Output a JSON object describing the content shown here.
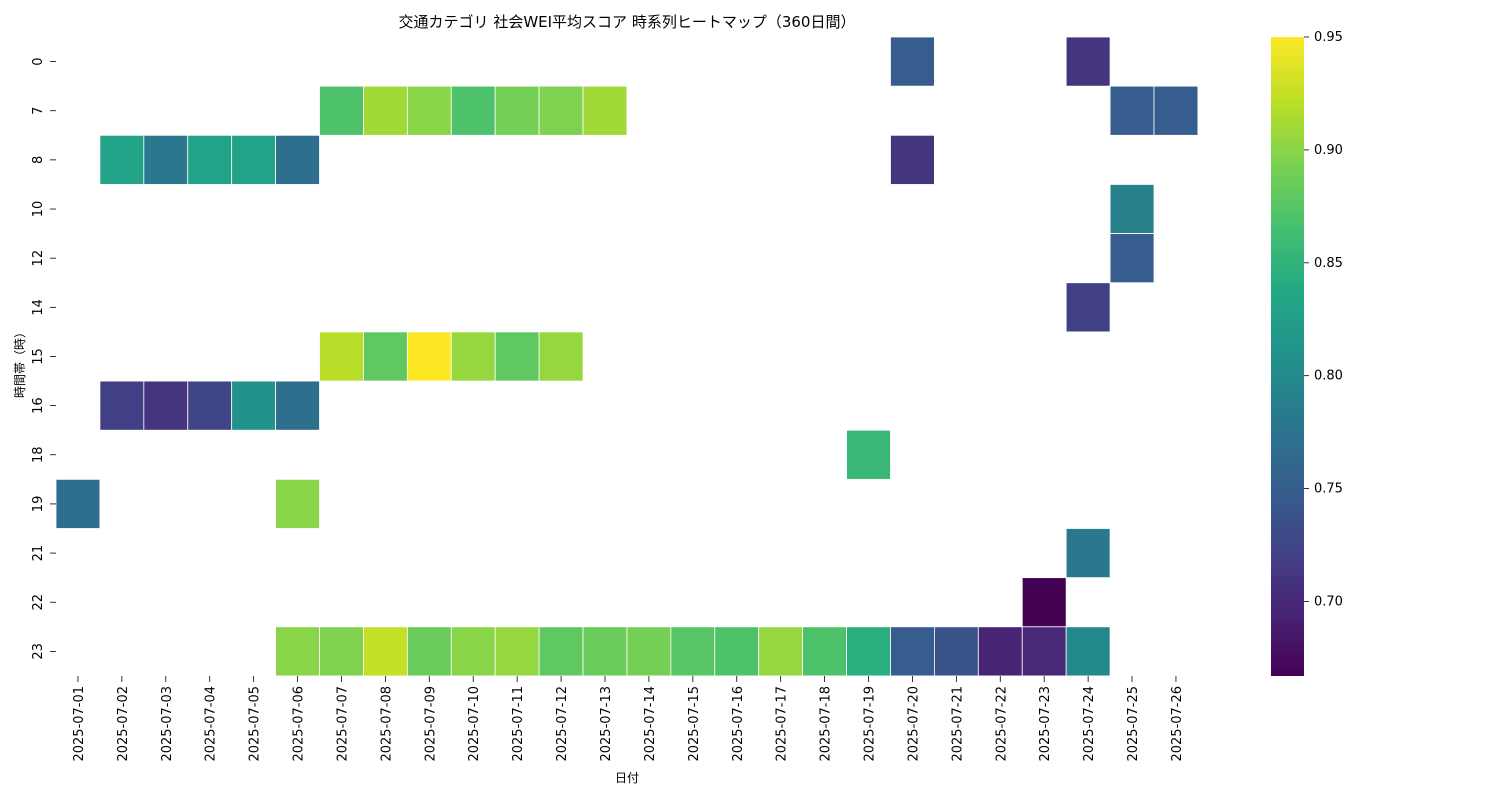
{
  "chart_data": {
    "type": "heatmap",
    "title": "交通カテゴリ 社会WEI平均スコア 時系列ヒートマップ（360日間）",
    "xlabel": "日付",
    "ylabel": "時間帯（時）",
    "x": [
      "2025-07-01",
      "2025-07-02",
      "2025-07-03",
      "2025-07-04",
      "2025-07-05",
      "2025-07-06",
      "2025-07-07",
      "2025-07-08",
      "2025-07-09",
      "2025-07-10",
      "2025-07-11",
      "2025-07-12",
      "2025-07-13",
      "2025-07-14",
      "2025-07-15",
      "2025-07-16",
      "2025-07-17",
      "2025-07-18",
      "2025-07-19",
      "2025-07-20",
      "2025-07-21",
      "2025-07-22",
      "2025-07-23",
      "2025-07-24",
      "2025-07-25",
      "2025-07-26"
    ],
    "y": [
      "0",
      "7",
      "8",
      "10",
      "12",
      "14",
      "15",
      "16",
      "18",
      "19",
      "21",
      "22",
      "23"
    ],
    "cells": [
      {
        "x": "2025-07-20",
        "y": "0",
        "value": 0.75
      },
      {
        "x": "2025-07-24",
        "y": "0",
        "value": 0.71
      },
      {
        "x": "2025-07-07",
        "y": "7",
        "value": 0.87
      },
      {
        "x": "2025-07-08",
        "y": "7",
        "value": 0.91
      },
      {
        "x": "2025-07-09",
        "y": "7",
        "value": 0.9
      },
      {
        "x": "2025-07-10",
        "y": "7",
        "value": 0.87
      },
      {
        "x": "2025-07-11",
        "y": "7",
        "value": 0.89
      },
      {
        "x": "2025-07-12",
        "y": "7",
        "value": 0.895
      },
      {
        "x": "2025-07-13",
        "y": "7",
        "value": 0.91
      },
      {
        "x": "2025-07-25",
        "y": "7",
        "value": 0.75
      },
      {
        "x": "2025-07-26",
        "y": "7",
        "value": 0.75
      },
      {
        "x": "2025-07-02",
        "y": "8",
        "value": 0.83
      },
      {
        "x": "2025-07-03",
        "y": "8",
        "value": 0.78
      },
      {
        "x": "2025-07-04",
        "y": "8",
        "value": 0.83
      },
      {
        "x": "2025-07-05",
        "y": "8",
        "value": 0.83
      },
      {
        "x": "2025-07-06",
        "y": "8",
        "value": 0.77
      },
      {
        "x": "2025-07-20",
        "y": "8",
        "value": 0.71
      },
      {
        "x": "2025-07-25",
        "y": "10",
        "value": 0.79
      },
      {
        "x": "2025-07-25",
        "y": "12",
        "value": 0.75
      },
      {
        "x": "2025-07-24",
        "y": "14",
        "value": 0.72
      },
      {
        "x": "2025-07-07",
        "y": "15",
        "value": 0.92
      },
      {
        "x": "2025-07-08",
        "y": "15",
        "value": 0.88
      },
      {
        "x": "2025-07-09",
        "y": "15",
        "value": 0.95
      },
      {
        "x": "2025-07-10",
        "y": "15",
        "value": 0.905
      },
      {
        "x": "2025-07-11",
        "y": "15",
        "value": 0.88
      },
      {
        "x": "2025-07-12",
        "y": "15",
        "value": 0.905
      },
      {
        "x": "2025-07-02",
        "y": "16",
        "value": 0.72
      },
      {
        "x": "2025-07-03",
        "y": "16",
        "value": 0.71
      },
      {
        "x": "2025-07-04",
        "y": "16",
        "value": 0.725
      },
      {
        "x": "2025-07-05",
        "y": "16",
        "value": 0.81
      },
      {
        "x": "2025-07-06",
        "y": "16",
        "value": 0.77
      },
      {
        "x": "2025-07-19",
        "y": "18",
        "value": 0.855
      },
      {
        "x": "2025-07-01",
        "y": "19",
        "value": 0.77
      },
      {
        "x": "2025-07-06",
        "y": "19",
        "value": 0.9
      },
      {
        "x": "2025-07-24",
        "y": "21",
        "value": 0.78
      },
      {
        "x": "2025-07-23",
        "y": "22",
        "value": 0.667
      },
      {
        "x": "2025-07-06",
        "y": "23",
        "value": 0.9
      },
      {
        "x": "2025-07-07",
        "y": "23",
        "value": 0.895
      },
      {
        "x": "2025-07-08",
        "y": "23",
        "value": 0.925
      },
      {
        "x": "2025-07-09",
        "y": "23",
        "value": 0.885
      },
      {
        "x": "2025-07-10",
        "y": "23",
        "value": 0.9
      },
      {
        "x": "2025-07-11",
        "y": "23",
        "value": 0.905
      },
      {
        "x": "2025-07-12",
        "y": "23",
        "value": 0.88
      },
      {
        "x": "2025-07-13",
        "y": "23",
        "value": 0.885
      },
      {
        "x": "2025-07-14",
        "y": "23",
        "value": 0.89
      },
      {
        "x": "2025-07-15",
        "y": "23",
        "value": 0.875
      },
      {
        "x": "2025-07-16",
        "y": "23",
        "value": 0.87
      },
      {
        "x": "2025-07-17",
        "y": "23",
        "value": 0.905
      },
      {
        "x": "2025-07-18",
        "y": "23",
        "value": 0.87
      },
      {
        "x": "2025-07-19",
        "y": "23",
        "value": 0.845
      },
      {
        "x": "2025-07-20",
        "y": "23",
        "value": 0.75
      },
      {
        "x": "2025-07-21",
        "y": "23",
        "value": 0.74
      },
      {
        "x": "2025-07-22",
        "y": "23",
        "value": 0.695
      },
      {
        "x": "2025-07-23",
        "y": "23",
        "value": 0.7
      },
      {
        "x": "2025-07-24",
        "y": "23",
        "value": 0.8
      }
    ],
    "colorbar": {
      "colormap": "viridis",
      "vmin": 0.667,
      "vmax": 0.95,
      "ticks": [
        "0.70",
        "0.75",
        "0.80",
        "0.85",
        "0.90",
        "0.95"
      ]
    },
    "grid": false
  }
}
